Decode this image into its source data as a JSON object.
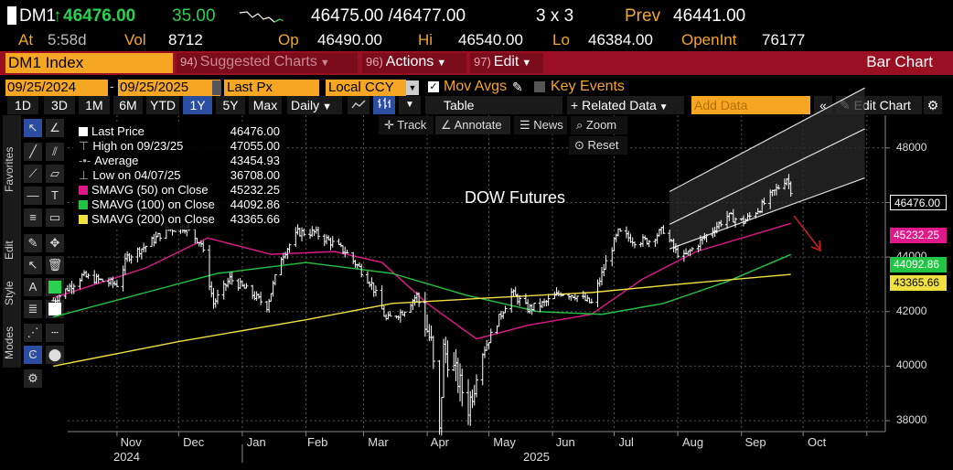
{
  "quote": {
    "ticker": "DM1",
    "arrow": "↑",
    "last": "46476.00",
    "change": "35.00",
    "bid_ask": "46475.00 /46477.00",
    "size": "3 x 3",
    "prev_label": "Prev",
    "prev": "46441.00",
    "at_label": "At",
    "at_time": "5:58d",
    "vol_label": "Vol",
    "vol": "8712",
    "op_label": "Op",
    "op": "46490.00",
    "hi_label": "Hi",
    "hi": "46540.00",
    "lo_label": "Lo",
    "lo": "46384.00",
    "oi_label": "OpenInt",
    "oi": "76177"
  },
  "menubar": {
    "security": "DM1 Index",
    "suggested_num": "94)",
    "suggested": "Suggested Charts",
    "actions_num": "96)",
    "actions": "Actions",
    "edit_num": "97)",
    "edit": "Edit",
    "title": "Bar Chart"
  },
  "controls": {
    "start_date": "09/25/2024",
    "end_date": "09/25/2025",
    "price_field": "Last Px",
    "currency": "Local CCY",
    "mov_avgs": "Mov Avgs",
    "key_events": "Key Events"
  },
  "periods": [
    "1D",
    "3D",
    "1M",
    "6M",
    "YTD",
    "1Y",
    "5Y",
    "Max"
  ],
  "selected_period": "1Y",
  "toolbar": {
    "frequency": "Daily",
    "table": "Table",
    "related_data": "Related Data",
    "add_data_placeholder": "Add Data",
    "edit_chart": "Edit Chart"
  },
  "chart_buttons": {
    "track": "Track",
    "annotate": "Annotate",
    "news": "News",
    "zoom": "Zoom",
    "reset": "Reset"
  },
  "side_labels": [
    "Favorites",
    "Edit",
    "Style",
    "Modes"
  ],
  "legend": [
    {
      "label": "Last Price",
      "value": "46476.00",
      "color": "#ffffff"
    },
    {
      "label": "High on 09/23/25",
      "value": "47055.00",
      "color": ""
    },
    {
      "label": "Average",
      "value": "43454.93",
      "color": ""
    },
    {
      "label": "Low on 04/07/25",
      "value": "36708.00",
      "color": ""
    },
    {
      "label": "SMAVG (50)  on Close",
      "value": "45232.25",
      "color": "#e0198a"
    },
    {
      "label": "SMAVG (100)  on Close",
      "value": "44092.86",
      "color": "#22c443"
    },
    {
      "label": "SMAVG (200)  on Close",
      "value": "43365.66",
      "color": "#f0e040"
    }
  ],
  "chart_data": {
    "type": "bar",
    "annotation_text": "DOW Futures",
    "x_tick_labels": [
      "Nov",
      "Dec",
      "Jan",
      "Feb",
      "Mar",
      "Apr",
      "May",
      "Jun",
      "Jul",
      "Aug",
      "Sep",
      "Oct"
    ],
    "year_labels": [
      "2024",
      "2025"
    ],
    "y_ticks": [
      38000,
      40000,
      42000,
      44000,
      46000,
      48000
    ],
    "ylim": [
      37600,
      49200
    ],
    "price_tags": [
      {
        "value": "46476.00",
        "color": "#ffffff"
      },
      {
        "value": "45232.25",
        "color": "#e0198a"
      },
      {
        "value": "44092.86",
        "color": "#22c443"
      },
      {
        "value": "43365.66",
        "color": "#f0e040"
      }
    ],
    "close_series": [
      {
        "date": "2024-10-01",
        "value": 42400
      },
      {
        "date": "2024-10-15",
        "value": 43300
      },
      {
        "date": "2024-11-01",
        "value": 43000
      },
      {
        "date": "2024-11-06",
        "value": 44000
      },
      {
        "date": "2024-11-15",
        "value": 44400
      },
      {
        "date": "2024-11-25",
        "value": 45000
      },
      {
        "date": "2024-12-04",
        "value": 45100
      },
      {
        "date": "2024-12-12",
        "value": 44500
      },
      {
        "date": "2024-12-18",
        "value": 42300
      },
      {
        "date": "2024-12-26",
        "value": 43200
      },
      {
        "date": "2025-01-03",
        "value": 42800
      },
      {
        "date": "2025-01-13",
        "value": 42200
      },
      {
        "date": "2025-01-20",
        "value": 44000
      },
      {
        "date": "2025-01-28",
        "value": 44900
      },
      {
        "date": "2025-02-05",
        "value": 44900
      },
      {
        "date": "2025-02-12",
        "value": 44600
      },
      {
        "date": "2025-02-20",
        "value": 44200
      },
      {
        "date": "2025-02-27",
        "value": 43600
      },
      {
        "date": "2025-03-05",
        "value": 43000
      },
      {
        "date": "2025-03-12",
        "value": 41700
      },
      {
        "date": "2025-03-20",
        "value": 42000
      },
      {
        "date": "2025-03-27",
        "value": 42600
      },
      {
        "date": "2025-04-03",
        "value": 40800
      },
      {
        "date": "2025-04-07",
        "value": 37500
      },
      {
        "date": "2025-04-09",
        "value": 40600
      },
      {
        "date": "2025-04-15",
        "value": 39700
      },
      {
        "date": "2025-04-21",
        "value": 38500
      },
      {
        "date": "2025-04-28",
        "value": 40500
      },
      {
        "date": "2025-05-05",
        "value": 41600
      },
      {
        "date": "2025-05-12",
        "value": 42700
      },
      {
        "date": "2025-05-20",
        "value": 42100
      },
      {
        "date": "2025-05-28",
        "value": 42300
      },
      {
        "date": "2025-06-05",
        "value": 42700
      },
      {
        "date": "2025-06-12",
        "value": 42600
      },
      {
        "date": "2025-06-20",
        "value": 42300
      },
      {
        "date": "2025-06-27",
        "value": 43800
      },
      {
        "date": "2025-07-03",
        "value": 44900
      },
      {
        "date": "2025-07-11",
        "value": 44600
      },
      {
        "date": "2025-07-18",
        "value": 44600
      },
      {
        "date": "2025-07-25",
        "value": 45000
      },
      {
        "date": "2025-07-31",
        "value": 44200
      },
      {
        "date": "2025-08-04",
        "value": 44000
      },
      {
        "date": "2025-08-11",
        "value": 44500
      },
      {
        "date": "2025-08-18",
        "value": 45000
      },
      {
        "date": "2025-08-25",
        "value": 45500
      },
      {
        "date": "2025-09-02",
        "value": 45300
      },
      {
        "date": "2025-09-10",
        "value": 45800
      },
      {
        "date": "2025-09-17",
        "value": 46400
      },
      {
        "date": "2025-09-23",
        "value": 46900
      },
      {
        "date": "2025-09-25",
        "value": 46476
      }
    ],
    "moving_averages": [
      {
        "name": "SMAVG (50)",
        "color": "#e0198a",
        "points": [
          [
            "2024-10-01",
            42500
          ],
          [
            "2024-11-15",
            43600
          ],
          [
            "2024-12-15",
            44700
          ],
          [
            "2025-01-15",
            44100
          ],
          [
            "2025-02-15",
            44200
          ],
          [
            "2025-03-10",
            43800
          ],
          [
            "2025-04-01",
            42300
          ],
          [
            "2025-04-25",
            41000
          ],
          [
            "2025-05-20",
            41500
          ],
          [
            "2025-06-20",
            41900
          ],
          [
            "2025-07-15",
            43200
          ],
          [
            "2025-08-10",
            44200
          ],
          [
            "2025-09-25",
            45232
          ]
        ]
      },
      {
        "name": "SMAVG (100)",
        "color": "#22c443",
        "points": [
          [
            "2024-10-01",
            41800
          ],
          [
            "2024-11-15",
            42700
          ],
          [
            "2024-12-20",
            43400
          ],
          [
            "2025-02-01",
            43800
          ],
          [
            "2025-03-15",
            43400
          ],
          [
            "2025-04-20",
            42600
          ],
          [
            "2025-05-25",
            42000
          ],
          [
            "2025-06-25",
            41900
          ],
          [
            "2025-07-25",
            42300
          ],
          [
            "2025-08-25",
            43100
          ],
          [
            "2025-09-25",
            44093
          ]
        ]
      },
      {
        "name": "SMAVG (200)",
        "color": "#f0e040",
        "points": [
          [
            "2024-10-01",
            40000
          ],
          [
            "2024-12-01",
            40900
          ],
          [
            "2025-02-01",
            41700
          ],
          [
            "2025-03-15",
            42300
          ],
          [
            "2025-05-01",
            42500
          ],
          [
            "2025-06-20",
            42700
          ],
          [
            "2025-08-01",
            43000
          ],
          [
            "2025-09-25",
            43366
          ]
        ]
      }
    ],
    "channel": {
      "lower": [
        [
          "2025-07-28",
          44300
        ],
        [
          "2025-10-31",
          46900
        ]
      ],
      "upper": [
        [
          "2025-07-28",
          45200
        ],
        [
          "2025-10-31",
          48700
        ]
      ],
      "top": [
        [
          "2025-07-28",
          46400
        ],
        [
          "2025-10-31",
          50200
        ]
      ]
    }
  }
}
